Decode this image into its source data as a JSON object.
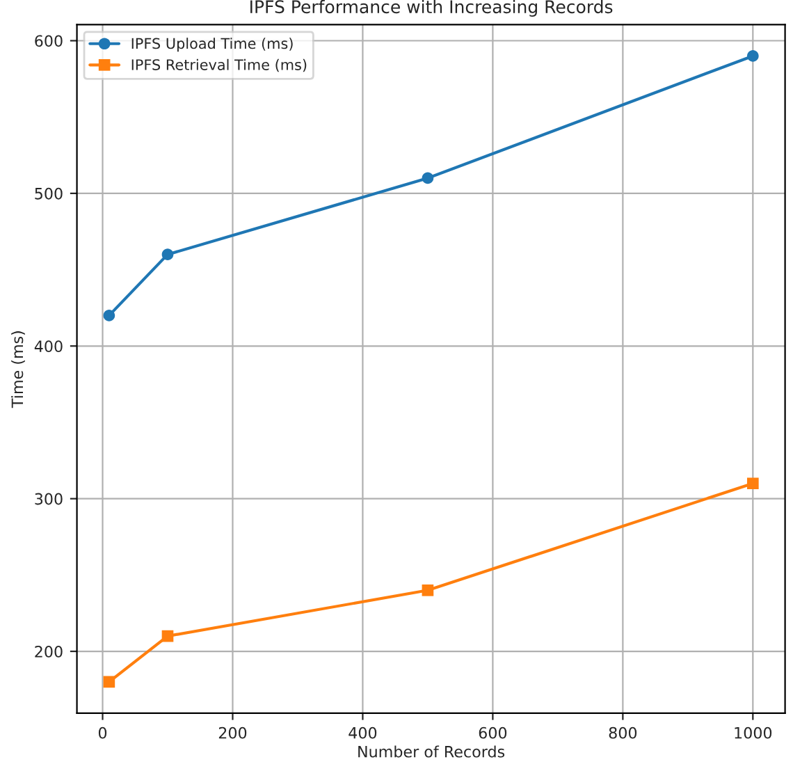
{
  "chart_data": {
    "type": "line",
    "title": "IPFS Performance with Increasing Records",
    "xlabel": "Number of Records",
    "ylabel": "Time (ms)",
    "x": [
      10,
      100,
      500,
      1000
    ],
    "series": [
      {
        "name": "IPFS Upload Time (ms)",
        "color": "#1f77b4",
        "marker": "circle",
        "values": [
          420,
          460,
          510,
          590
        ]
      },
      {
        "name": "IPFS Retrieval Time (ms)",
        "color": "#ff7f0e",
        "marker": "square",
        "values": [
          180,
          210,
          240,
          310
        ]
      }
    ],
    "xlim": [
      -39.5,
      1049.5
    ],
    "xticks": [
      0,
      200,
      400,
      600,
      800,
      1000
    ],
    "ylim": [
      159.5,
      610.5
    ],
    "yticks": [
      200,
      300,
      400,
      500,
      600
    ],
    "grid": true,
    "legend": "top left",
    "line_style": "solid"
  }
}
